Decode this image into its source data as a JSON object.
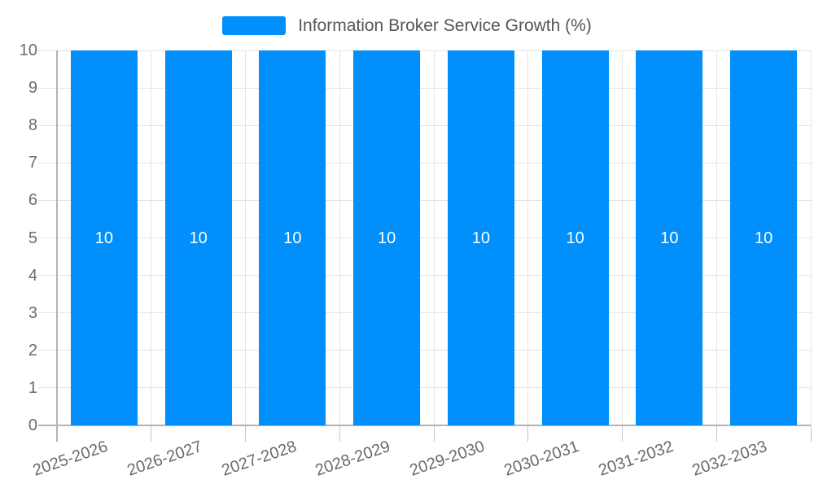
{
  "legend": {
    "label": "Information Broker Service Growth (%)"
  },
  "chart_data": {
    "type": "bar",
    "title": "Information Broker Service Growth (%)",
    "categories": [
      "2025-2026",
      "2026-2027",
      "2027-2028",
      "2028-2029",
      "2029-2030",
      "2030-2031",
      "2031-2032",
      "2032-2033"
    ],
    "series": [
      {
        "name": "Information Broker Service Growth (%)",
        "values": [
          10,
          10,
          10,
          10,
          10,
          10,
          10,
          10
        ]
      }
    ],
    "xlabel": "",
    "ylabel": "",
    "ylim": [
      0,
      10
    ],
    "yticks": [
      0,
      1,
      2,
      3,
      4,
      5,
      6,
      7,
      8,
      9,
      10
    ],
    "grid": true,
    "legend_position": "top-center",
    "bar_labels_shown": true
  },
  "colors": {
    "bar": "#008FFB",
    "grid": "#e4e4e4",
    "axis": "#b3b3b3",
    "tick": "#c4c4c4",
    "axis_label": "#6b6b6b",
    "legend_text": "#565656",
    "value_label": "#ffffff",
    "background": "#ffffff"
  }
}
